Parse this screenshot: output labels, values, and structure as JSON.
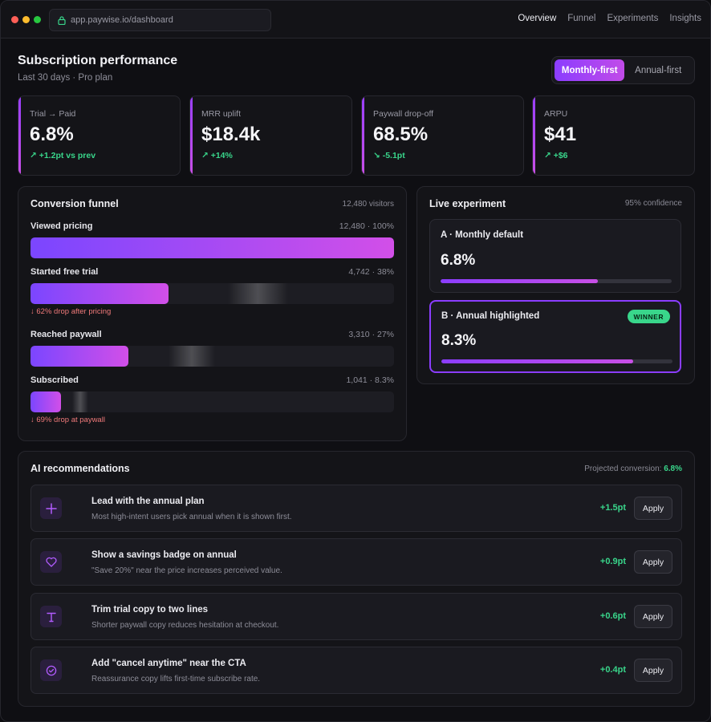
{
  "browser": {
    "url": "app.paywise.io/dashboard"
  },
  "nav": {
    "items": [
      "Overview",
      "Funnel",
      "Experiments",
      "Insights"
    ],
    "active": "Overview"
  },
  "header": {
    "title": "Subscription performance",
    "subtitle": "Last 30 days · Pro plan",
    "toggle": {
      "options": [
        "Monthly-first",
        "Annual-first"
      ],
      "selected": "Monthly-first"
    }
  },
  "kpis": [
    {
      "label": "Trial → Paid",
      "value": "6.8%",
      "delta": "↗ +1.2pt vs prev",
      "trend": "up"
    },
    {
      "label": "MRR uplift",
      "value": "$18.4k",
      "delta": "↗ +14%",
      "trend": "up"
    },
    {
      "label": "Paywall drop-off",
      "value": "68.5%",
      "delta": "↘ -5.1pt",
      "trend": "down"
    },
    {
      "label": "ARPU",
      "value": "$41",
      "delta": "↗ +$6",
      "trend": "up"
    }
  ],
  "funnel": {
    "title": "Conversion funnel",
    "meta": "12,480 visitors",
    "steps": [
      {
        "label": "Viewed pricing",
        "stat": "12,480 · 100%",
        "percent": 100,
        "drop": ""
      },
      {
        "label": "Started free trial",
        "stat": "4,742 · 38%",
        "percent": 38,
        "drop": "↓ 62% drop after pricing"
      },
      {
        "label": "Reached paywall",
        "stat": "3,310 · 27%",
        "percent": 27,
        "drop": ""
      },
      {
        "label": "Subscribed",
        "stat": "1,041 · 8.3%",
        "percent": 8.3,
        "drop": "↓ 69% drop at paywall"
      }
    ]
  },
  "experiment": {
    "title": "Live experiment",
    "meta": "95% confidence",
    "variants": [
      {
        "name": "A · Monthly default",
        "value": "6.8%",
        "progress": 0.68,
        "winner": false
      },
      {
        "name": "B · Annual highlighted",
        "value": "8.3%",
        "progress": 0.83,
        "winner": true,
        "badge": "WINNER"
      }
    ]
  },
  "recommendations": {
    "title": "AI recommendations",
    "projected_label": "Projected conversion:",
    "projected_value": "6.8%",
    "accent": "#39d68b",
    "items": [
      {
        "icon": "plus-icon",
        "title": "Lead with the annual plan",
        "desc": "Most high-intent users pick annual when it is shown first.",
        "delta": "+1.5pt",
        "button": "Apply"
      },
      {
        "icon": "heart-icon",
        "title": "Show a savings badge on annual",
        "desc": "\"Save 20%\" near the price increases perceived value.",
        "delta": "+0.9pt",
        "button": "Apply"
      },
      {
        "icon": "text-icon",
        "title": "Trim trial copy to two lines",
        "desc": "Shorter paywall copy reduces hesitation at checkout.",
        "delta": "+0.6pt",
        "button": "Apply"
      },
      {
        "icon": "check-circle-icon",
        "title": "Add \"cancel anytime\" near the CTA",
        "desc": "Reassurance copy lifts first-time subscribe rate.",
        "delta": "+0.4pt",
        "button": "Apply"
      }
    ]
  },
  "colors": {
    "brand_gradient_start": "#8b3dff",
    "brand_gradient_end": "#c84fe6",
    "positive": "#39d68b",
    "negative": "#f07a7a"
  }
}
